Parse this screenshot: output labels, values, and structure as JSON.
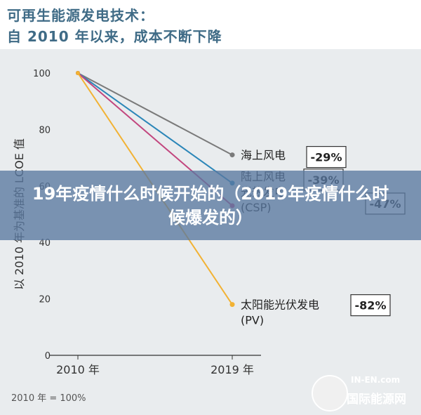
{
  "header": {
    "line1": "可再生能源发电技术：",
    "line2": "自  2010  年以来，成本不断下降"
  },
  "overlay": {
    "text": "19年疫情什么时候开始的（2019年疫情什么时候爆发的）"
  },
  "footnote": "2010 年 = 100%",
  "watermark": {
    "en": "IN-EN.com",
    "cn": "国际能源网"
  },
  "colors": {
    "title": "#3f6b86",
    "offshore": "#7a7a7a",
    "onshore": "#2b86b8",
    "csp": "#c2467e",
    "pv": "#f2b233"
  },
  "chart_data": {
    "type": "line",
    "title": "",
    "xlabel": "",
    "ylabel": "以 2010 年为基准的 LCOE 值",
    "x": [
      "2010 年",
      "2019 年"
    ],
    "yticks": [
      0,
      20,
      40,
      60,
      80,
      100
    ],
    "ylim": [
      0,
      100
    ],
    "grid": false,
    "series": [
      {
        "name": "海上风电",
        "values": [
          100,
          71
        ],
        "color": "#7a7a7a",
        "change": "-29%"
      },
      {
        "name": "陆上风电",
        "values": [
          100,
          61
        ],
        "color": "#2b86b8",
        "change": "-39%"
      },
      {
        "name": "光热发电 (CSP)",
        "values": [
          100,
          53
        ],
        "color": "#c2467e",
        "change": "-47%"
      },
      {
        "name": "太阳能光伏发电 (PV)",
        "values": [
          100,
          18
        ],
        "color": "#f2b233",
        "change": "-82%"
      }
    ]
  }
}
